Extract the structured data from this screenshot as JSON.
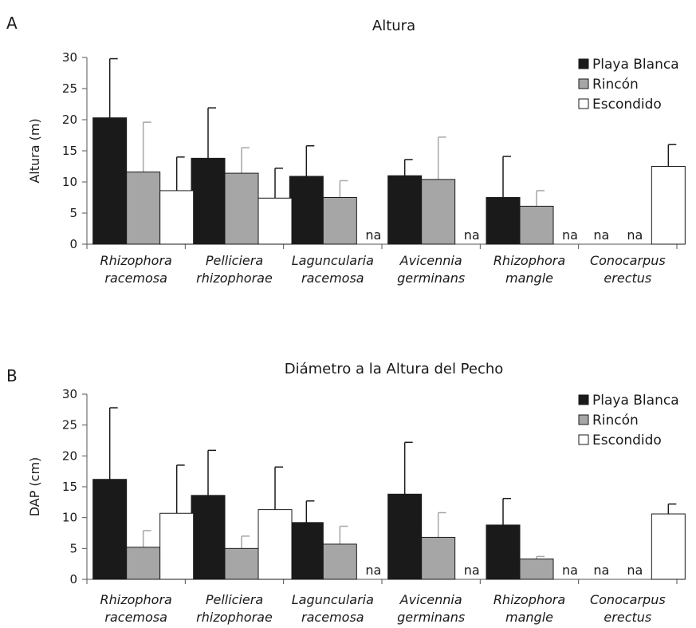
{
  "colors": {
    "Playa Blanca": "#1a1a1a",
    "Rincón": "#a6a6a6",
    "Escondido": "#ffffff",
    "axis": "#555555",
    "error_bar_dark": "#1a1a1a",
    "error_bar_grey": "#a6a6a6"
  },
  "chart_data": [
    {
      "type": "bar",
      "panel": "A",
      "title": "Altura",
      "xlabel": "",
      "ylabel": "Altura (m)",
      "ylim": [
        0,
        30
      ],
      "yticks": [
        0,
        5,
        10,
        15,
        20,
        25,
        30
      ],
      "grid": false,
      "legend_position": "top-right",
      "na_text": "na",
      "categories": [
        [
          "Rhizophora",
          "racemosa"
        ],
        [
          "Pelliciera",
          "rhizophorae"
        ],
        [
          "Laguncularia",
          "racemosa"
        ],
        [
          "Avicennia",
          "germinans"
        ],
        [
          "Rhizophora",
          "mangle"
        ],
        [
          "Conocarpus",
          "erectus"
        ]
      ],
      "series": [
        {
          "name": "Playa Blanca",
          "values": [
            20.3,
            13.8,
            10.9,
            11.0,
            7.5,
            null
          ],
          "errors": [
            9.5,
            8.1,
            4.9,
            2.6,
            6.6,
            null
          ]
        },
        {
          "name": "Rincón",
          "values": [
            11.6,
            11.4,
            7.5,
            10.4,
            6.1,
            null
          ],
          "errors": [
            8.0,
            4.1,
            2.7,
            6.8,
            2.5,
            null
          ]
        },
        {
          "name": "Escondido",
          "values": [
            8.6,
            7.4,
            null,
            null,
            null,
            12.5
          ],
          "errors": [
            5.4,
            4.8,
            null,
            null,
            null,
            3.5
          ]
        }
      ]
    },
    {
      "type": "bar",
      "panel": "B",
      "title": "Diámetro a la Altura del Pecho",
      "xlabel": "",
      "ylabel": "DAP (cm)",
      "ylim": [
        0,
        30
      ],
      "yticks": [
        0,
        5,
        10,
        15,
        20,
        25,
        30
      ],
      "grid": false,
      "legend_position": "top-right",
      "na_text": "na",
      "categories": [
        [
          "Rhizophora",
          "racemosa"
        ],
        [
          "Pelliciera",
          "rhizophorae"
        ],
        [
          "Laguncularia",
          "racemosa"
        ],
        [
          "Avicennia",
          "germinans"
        ],
        [
          "Rhizophora",
          "mangle"
        ],
        [
          "Conocarpus",
          "erectus"
        ]
      ],
      "series": [
        {
          "name": "Playa Blanca",
          "values": [
            16.2,
            13.6,
            9.2,
            13.8,
            8.8,
            null
          ],
          "errors": [
            11.6,
            7.3,
            3.5,
            8.4,
            4.3,
            null
          ]
        },
        {
          "name": "Rincón",
          "values": [
            5.2,
            5.0,
            5.7,
            6.8,
            3.3,
            null
          ],
          "errors": [
            2.7,
            2.0,
            2.9,
            4.0,
            0.4,
            null
          ]
        },
        {
          "name": "Escondido",
          "values": [
            10.7,
            11.3,
            null,
            null,
            null,
            10.6
          ],
          "errors": [
            7.8,
            6.9,
            null,
            null,
            null,
            1.6
          ]
        }
      ]
    }
  ]
}
